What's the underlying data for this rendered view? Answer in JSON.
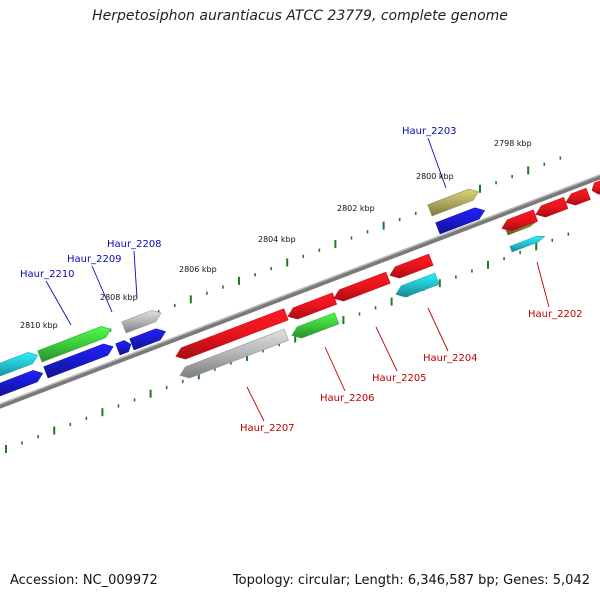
{
  "title": "Herpetosiphon aurantiacus ATCC 23779, complete genome",
  "footer": {
    "accession": "Accession: NC_009972",
    "summary": "Topology: circular; Length: 6,346,587 bp; Genes: 5,042"
  },
  "colors": {
    "red": "#e8141c",
    "green": "#3dc93d",
    "blue": "#1a1acc",
    "cyan": "#22c0cc",
    "gray": "#b4b4b4",
    "khaki": "#b0a860",
    "olive": "#708a2a",
    "backbone": "#7a7a7a",
    "ticks": "#1e7a1e",
    "label_blue": "#0a0ab0",
    "label_red": "#c00000"
  },
  "kbp_labels": [
    "2798 kbp",
    "2800 kbp",
    "2802 kbp",
    "2804 kbp",
    "2806 kbp",
    "2808 kbp",
    "2810 kbp"
  ],
  "gene_labels": {
    "top": [
      "Haur_2203",
      "Haur_2208",
      "Haur_2209",
      "Haur_2210"
    ],
    "bottom": [
      "Haur_2202",
      "Haur_2204",
      "Haur_2205",
      "Haur_2206",
      "Haur_2207"
    ]
  }
}
